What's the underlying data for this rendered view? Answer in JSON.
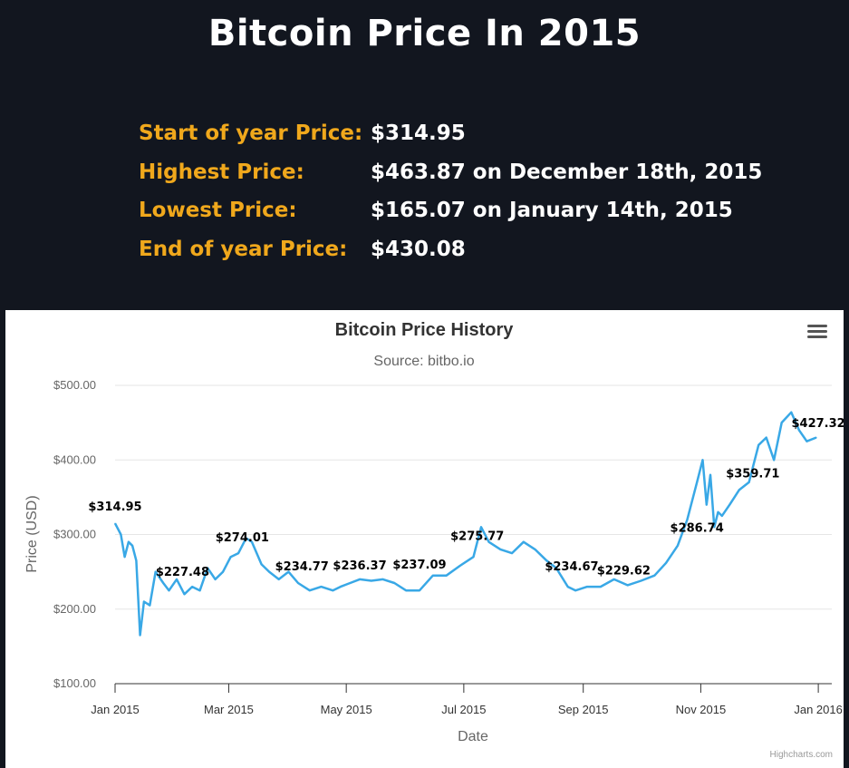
{
  "page": {
    "title": "Bitcoin Price In 2015"
  },
  "stats": [
    {
      "label": "Start of year Price:",
      "value": "$314.95"
    },
    {
      "label": "Highest Price:",
      "value": "$463.87 on December 18th, 2015"
    },
    {
      "label": "Lowest Price:",
      "value": "$165.07 on January 14th, 2015"
    },
    {
      "label": "End of year Price:",
      "value": "$430.08"
    }
  ],
  "colors": {
    "background": "#12161f",
    "accent": "#f0a81c",
    "line": "#39a8e6"
  },
  "icons": {
    "menu": "hamburger-menu-icon"
  },
  "credits": "Highcharts.com",
  "chart_data": {
    "type": "line",
    "title": "Bitcoin Price History",
    "subtitle": "Source: bitbo.io",
    "xlabel": "Date",
    "ylabel": "Price (USD)",
    "ylim": [
      100,
      500
    ],
    "yticks": [
      100,
      200,
      300,
      400,
      500
    ],
    "ytick_labels": [
      "$100.00",
      "$200.00",
      "$300.00",
      "$400.00",
      "$500.00"
    ],
    "xlim": [
      "2015-01-01",
      "2016-01-08"
    ],
    "xticks": [
      "2015-01-01",
      "2015-03-01",
      "2015-05-01",
      "2015-07-01",
      "2015-09-01",
      "2015-11-01",
      "2016-01-01"
    ],
    "xtick_labels": [
      "Jan 2015",
      "Mar 2015",
      "May 2015",
      "Jul 2015",
      "Sep 2015",
      "Nov 2015",
      "Jan 2016"
    ],
    "grid": true,
    "legend": false,
    "series": [
      {
        "x": [
          "2015-01-01",
          "2015-01-04",
          "2015-01-06",
          "2015-01-08",
          "2015-01-10",
          "2015-01-12",
          "2015-01-14",
          "2015-01-16",
          "2015-01-19",
          "2015-01-22",
          "2015-01-26",
          "2015-01-29",
          "2015-02-02",
          "2015-02-06",
          "2015-02-10",
          "2015-02-14",
          "2015-02-18",
          "2015-02-22",
          "2015-02-26",
          "2015-03-02",
          "2015-03-06",
          "2015-03-10",
          "2015-03-13",
          "2015-03-18",
          "2015-03-22",
          "2015-03-27",
          "2015-04-01",
          "2015-04-06",
          "2015-04-12",
          "2015-04-18",
          "2015-04-24",
          "2015-04-28",
          "2015-05-03",
          "2015-05-08",
          "2015-05-14",
          "2015-05-20",
          "2015-05-26",
          "2015-06-01",
          "2015-06-08",
          "2015-06-15",
          "2015-06-22",
          "2015-06-29",
          "2015-07-06",
          "2015-07-10",
          "2015-07-14",
          "2015-07-20",
          "2015-07-26",
          "2015-08-01",
          "2015-08-07",
          "2015-08-13",
          "2015-08-18",
          "2015-08-24",
          "2015-08-28",
          "2015-09-03",
          "2015-09-10",
          "2015-09-17",
          "2015-09-24",
          "2015-10-01",
          "2015-10-08",
          "2015-10-14",
          "2015-10-20",
          "2015-10-25",
          "2015-10-30",
          "2015-11-02",
          "2015-11-04",
          "2015-11-06",
          "2015-11-08",
          "2015-11-10",
          "2015-11-12",
          "2015-11-16",
          "2015-11-21",
          "2015-11-26",
          "2015-12-01",
          "2015-12-05",
          "2015-12-09",
          "2015-12-13",
          "2015-12-18",
          "2015-12-22",
          "2015-12-26",
          "2015-12-31"
        ],
        "y": [
          314.95,
          300,
          270,
          290,
          285,
          265,
          165.07,
          210,
          205,
          250,
          235,
          225,
          240,
          220,
          230,
          225,
          255,
          240,
          250,
          270,
          275,
          295,
          290,
          260,
          250,
          240,
          250,
          235,
          225,
          230,
          225,
          230,
          235,
          240,
          238,
          240,
          235,
          225,
          225,
          245,
          245,
          258,
          270,
          310,
          290,
          280,
          275,
          290,
          280,
          265,
          255,
          230,
          225,
          230,
          230,
          240,
          232,
          238,
          245,
          262,
          285,
          320,
          370,
          400,
          340,
          380,
          310,
          330,
          325,
          340,
          360,
          370,
          420,
          430,
          400,
          450,
          463.87,
          440,
          425,
          430.08
        ]
      }
    ],
    "annotations": [
      {
        "x": "2015-01-01",
        "y": 314.95,
        "label": "$314.95"
      },
      {
        "x": "2015-02-05",
        "y": 227.48,
        "label": "$227.48"
      },
      {
        "x": "2015-03-08",
        "y": 274.01,
        "label": "$274.01"
      },
      {
        "x": "2015-04-08",
        "y": 234.77,
        "label": "$234.77"
      },
      {
        "x": "2015-05-08",
        "y": 236.37,
        "label": "$236.37"
      },
      {
        "x": "2015-06-08",
        "y": 237.09,
        "label": "$237.09"
      },
      {
        "x": "2015-07-08",
        "y": 275.77,
        "label": "$275.77"
      },
      {
        "x": "2015-08-26",
        "y": 234.67,
        "label": "$234.67"
      },
      {
        "x": "2015-09-22",
        "y": 229.62,
        "label": "$229.62"
      },
      {
        "x": "2015-10-30",
        "y": 286.74,
        "label": "$286.74"
      },
      {
        "x": "2015-11-28",
        "y": 359.71,
        "label": "$359.71"
      },
      {
        "x": "2016-01-01",
        "y": 427.32,
        "label": "$427.32"
      }
    ]
  }
}
